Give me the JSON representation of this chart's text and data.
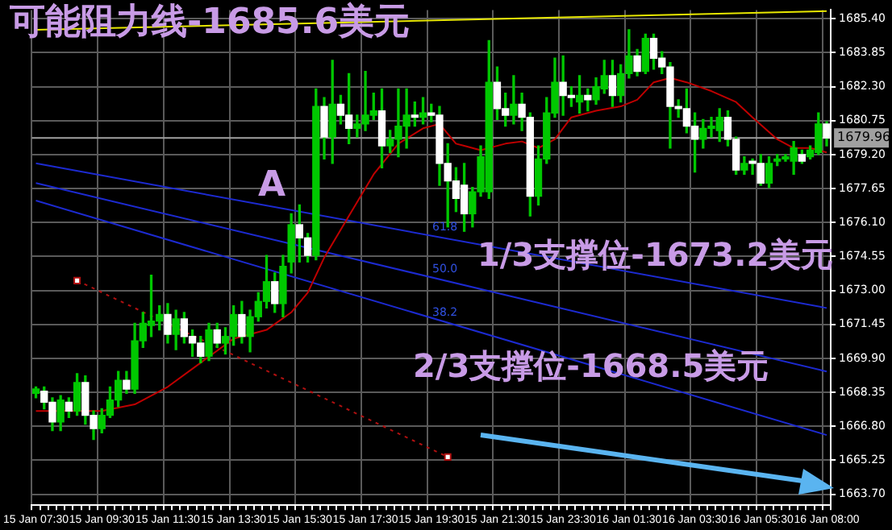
{
  "chart_data": {
    "type": "candlestick",
    "categories": [
      "15 Jan 07:30",
      null,
      null,
      null,
      null,
      null,
      null,
      null,
      "15 Jan 09:30",
      null,
      null,
      null,
      null,
      null,
      null,
      null,
      "15 Jan 11:30",
      null,
      null,
      null,
      null,
      null,
      null,
      null,
      "15 Jan 13:30",
      null,
      null,
      null,
      null,
      null,
      null,
      null,
      "15 Jan 15:30",
      null,
      null,
      null,
      null,
      null,
      null,
      null,
      "15 Jan 17:30",
      null,
      null,
      null,
      null,
      null,
      null,
      null,
      "15 Jan 19:30",
      null,
      null,
      null,
      null,
      null,
      null,
      null,
      "15 Jan 21:30",
      null,
      null,
      null,
      null,
      null,
      null,
      null,
      "15 Jan 23:30",
      null,
      null,
      null,
      null,
      null,
      null,
      null,
      "16 Jan 01:30",
      null,
      null,
      null,
      null,
      null,
      null,
      null,
      "16 Jan 03:30",
      null,
      null,
      null,
      null,
      null,
      null,
      null,
      "16 Jan 05:30",
      null,
      null,
      null,
      null,
      null,
      null,
      null,
      "16 Jan 08:00"
    ],
    "ohlc": [
      [
        1668.3,
        1668.6,
        1668.1,
        1668.5
      ],
      [
        1668.4,
        1668.6,
        1667.6,
        1667.9
      ],
      [
        1667.9,
        1668.1,
        1666.6,
        1667.0
      ],
      [
        1667.0,
        1668.2,
        1666.6,
        1668.0
      ],
      [
        1667.9,
        1668.1,
        1667.2,
        1667.5
      ],
      [
        1667.5,
        1669.2,
        1667.3,
        1668.8
      ],
      [
        1668.8,
        1669.1,
        1666.9,
        1667.3
      ],
      [
        1667.3,
        1667.5,
        1666.2,
        1666.7
      ],
      [
        1666.7,
        1667.6,
        1666.5,
        1667.3
      ],
      [
        1667.3,
        1668.6,
        1667.2,
        1668.0
      ],
      [
        1668.0,
        1669.3,
        1667.7,
        1668.9
      ],
      [
        1668.9,
        1669.3,
        1668.3,
        1668.5
      ],
      [
        1668.5,
        1671.5,
        1668.3,
        1670.7
      ],
      [
        1670.7,
        1672.0,
        1670.4,
        1671.5
      ],
      [
        1671.4,
        1673.7,
        1670.9,
        1671.6
      ],
      [
        1671.6,
        1672.3,
        1671.2,
        1671.9
      ],
      [
        1671.9,
        1672.4,
        1670.6,
        1671.0
      ],
      [
        1671.0,
        1672.1,
        1670.3,
        1671.7
      ],
      [
        1671.7,
        1672.0,
        1670.6,
        1670.9
      ],
      [
        1670.9,
        1671.2,
        1670.0,
        1670.6
      ],
      [
        1670.6,
        1670.9,
        1669.7,
        1670.0
      ],
      [
        1670.0,
        1671.5,
        1669.8,
        1671.2
      ],
      [
        1671.2,
        1671.5,
        1670.4,
        1670.6
      ],
      [
        1670.6,
        1671.3,
        1670.1,
        1670.9
      ],
      [
        1670.9,
        1672.3,
        1670.5,
        1671.9
      ],
      [
        1671.9,
        1672.5,
        1670.6,
        1670.9
      ],
      [
        1670.9,
        1672.1,
        1670.2,
        1671.8
      ],
      [
        1671.8,
        1672.9,
        1671.6,
        1672.5
      ],
      [
        1672.5,
        1674.6,
        1672.2,
        1673.4
      ],
      [
        1673.4,
        1673.8,
        1672.0,
        1672.4
      ],
      [
        1672.4,
        1674.6,
        1671.8,
        1674.1
      ],
      [
        1674.3,
        1676.5,
        1673.8,
        1676.0
      ],
      [
        1676.0,
        1676.9,
        1674.3,
        1675.4
      ],
      [
        1675.4,
        1675.6,
        1674.3,
        1674.6
      ],
      [
        1674.6,
        1682.2,
        1674.4,
        1681.4
      ],
      [
        1681.4,
        1681.8,
        1679.0,
        1680.0
      ],
      [
        1680.0,
        1683.5,
        1678.8,
        1681.5
      ],
      [
        1681.5,
        1681.9,
        1680.6,
        1681.0
      ],
      [
        1681.0,
        1682.9,
        1679.7,
        1680.4
      ],
      [
        1680.4,
        1681.0,
        1680.0,
        1680.6
      ],
      [
        1680.6,
        1683.0,
        1680.3,
        1681.0
      ],
      [
        1681.0,
        1682.0,
        1680.8,
        1681.2
      ],
      [
        1681.2,
        1682.2,
        1678.6,
        1679.6
      ],
      [
        1679.6,
        1680.3,
        1679.3,
        1679.9
      ],
      [
        1679.9,
        1682.2,
        1679.1,
        1680.5
      ],
      [
        1680.5,
        1682.2,
        1679.5,
        1681.0
      ],
      [
        1681.0,
        1681.6,
        1680.5,
        1680.9
      ],
      [
        1680.9,
        1681.8,
        1680.6,
        1681.1
      ],
      [
        1681.1,
        1681.5,
        1680.7,
        1681.0
      ],
      [
        1681.0,
        1681.4,
        1677.8,
        1678.8
      ],
      [
        1678.8,
        1679.7,
        1675.9,
        1678.0
      ],
      [
        1678.0,
        1678.6,
        1676.6,
        1677.2
      ],
      [
        1677.8,
        1678.8,
        1675.7,
        1676.5
      ],
      [
        1676.5,
        1677.7,
        1675.9,
        1677.5
      ],
      [
        1677.5,
        1679.6,
        1677.3,
        1679.1
      ],
      [
        1677.5,
        1684.4,
        1677.2,
        1682.5
      ],
      [
        1682.5,
        1683.2,
        1680.8,
        1681.3
      ],
      [
        1681.3,
        1682.0,
        1680.5,
        1681.0
      ],
      [
        1681.0,
        1682.8,
        1680.6,
        1681.5
      ],
      [
        1681.5,
        1682.0,
        1680.3,
        1680.9
      ],
      [
        1680.9,
        1681.1,
        1676.4,
        1677.3
      ],
      [
        1677.3,
        1679.6,
        1676.9,
        1679.0
      ],
      [
        1679.0,
        1681.8,
        1678.8,
        1681.1
      ],
      [
        1681.1,
        1683.6,
        1680.9,
        1682.5
      ],
      [
        1682.5,
        1683.7,
        1681.0,
        1681.9
      ],
      [
        1681.9,
        1682.3,
        1681.4,
        1681.8
      ],
      [
        1681.6,
        1682.8,
        1681.1,
        1681.9
      ],
      [
        1681.9,
        1682.2,
        1681.2,
        1681.7
      ],
      [
        1681.7,
        1682.7,
        1681.5,
        1682.3
      ],
      [
        1682.2,
        1683.5,
        1682.0,
        1682.8
      ],
      [
        1682.8,
        1683.5,
        1681.4,
        1681.9
      ],
      [
        1681.9,
        1683.3,
        1681.6,
        1682.9
      ],
      [
        1682.9,
        1684.9,
        1682.7,
        1683.7
      ],
      [
        1683.7,
        1684.0,
        1682.8,
        1683.0
      ],
      [
        1683.0,
        1684.7,
        1682.9,
        1684.5
      ],
      [
        1684.5,
        1684.7,
        1683.1,
        1683.6
      ],
      [
        1683.6,
        1683.9,
        1682.9,
        1683.2
      ],
      [
        1683.2,
        1683.4,
        1679.5,
        1681.4
      ],
      [
        1681.4,
        1681.7,
        1680.9,
        1681.3
      ],
      [
        1681.3,
        1682.2,
        1680.2,
        1680.5
      ],
      [
        1680.5,
        1681.1,
        1678.4,
        1679.9
      ],
      [
        1679.9,
        1680.8,
        1679.5,
        1680.4
      ],
      [
        1680.4,
        1680.9,
        1680.0,
        1680.5
      ],
      [
        1680.3,
        1681.3,
        1679.8,
        1680.9
      ],
      [
        1680.9,
        1681.2,
        1679.6,
        1679.9
      ],
      [
        1679.9,
        1680.0,
        1678.3,
        1678.5
      ],
      [
        1678.5,
        1679.1,
        1678.3,
        1678.8
      ],
      [
        1678.9,
        1679.0,
        1678.3,
        1678.8
      ],
      [
        1678.8,
        1679.2,
        1677.8,
        1677.9
      ],
      [
        1677.9,
        1679.1,
        1677.7,
        1678.8
      ],
      [
        1678.9,
        1679.2,
        1678.7,
        1679.0
      ],
      [
        1679.0,
        1679.2,
        1678.9,
        1679.1
      ],
      [
        1678.9,
        1679.8,
        1678.3,
        1679.5
      ],
      [
        1679.2,
        1679.4,
        1678.8,
        1678.9
      ],
      [
        1679.1,
        1679.6,
        1679.0,
        1679.4
      ],
      [
        1679.3,
        1681.1,
        1679.2,
        1680.6
      ],
      [
        1680.6,
        1680.7,
        1679.6,
        1679.96
      ]
    ],
    "series": [
      {
        "type": "line",
        "color": "#c00000",
        "values": [
          1667.5,
          null,
          null,
          null,
          null,
          null,
          null,
          null,
          1667.5,
          null,
          null,
          null,
          1667.8,
          null,
          null,
          null,
          1668.6,
          null,
          null,
          null,
          1669.7,
          null,
          null,
          null,
          1670.8,
          null,
          null,
          null,
          1671.2,
          null,
          null,
          1672.0,
          null,
          1672.9,
          null,
          1674.5,
          null,
          null,
          1676.4,
          null,
          null,
          1678.3,
          null,
          null,
          1679.7,
          null,
          null,
          1680.4,
          null,
          1680.6,
          null,
          1679.7,
          1679.6,
          null,
          1679.4,
          null,
          null,
          1679.7,
          null,
          1679.8,
          null,
          1679.5,
          null,
          1679.9,
          null,
          1680.9,
          null,
          null,
          1681.2,
          null,
          null,
          1681.4,
          null,
          1681.7,
          null,
          1682.5,
          null,
          1682.7,
          null,
          1682.5,
          null,
          null,
          1682.1,
          null,
          null,
          1681.6,
          null,
          1680.9,
          null,
          null,
          1679.9,
          null,
          1679.5,
          null,
          1679.5,
          null,
          1679.3
        ]
      },
      {
        "type": "line",
        "color": "#e8e800",
        "values": [
          1684.9,
          null,
          null,
          null,
          null,
          null,
          null,
          null,
          null,
          null,
          null,
          null,
          null,
          null,
          null,
          null,
          null,
          null,
          null,
          null,
          null,
          null,
          null,
          null,
          null,
          null,
          null,
          null,
          null,
          null,
          null,
          null,
          null,
          null,
          null,
          null,
          null,
          null,
          null,
          null,
          null,
          null,
          null,
          null,
          null,
          null,
          null,
          null,
          null,
          null,
          null,
          null,
          null,
          null,
          null,
          null,
          null,
          null,
          null,
          null,
          null,
          null,
          null,
          null,
          null,
          null,
          null,
          null,
          null,
          null,
          null,
          null,
          null,
          null,
          null,
          null,
          null,
          null,
          null,
          null,
          null,
          null,
          null,
          null,
          null,
          null,
          null,
          null,
          null,
          null,
          null,
          null,
          null,
          null,
          null,
          null,
          1685.75
        ]
      },
      {
        "type": "line",
        "color": "#1c2ad0",
        "values": [
          1678.8,
          null,
          null,
          null,
          null,
          null,
          null,
          null,
          null,
          null,
          null,
          null,
          null,
          null,
          null,
          null,
          null,
          null,
          null,
          null,
          null,
          null,
          null,
          null,
          null,
          null,
          null,
          null,
          null,
          null,
          null,
          null,
          null,
          null,
          null,
          null,
          null,
          null,
          null,
          null,
          null,
          null,
          null,
          null,
          null,
          null,
          null,
          null,
          null,
          null,
          null,
          null,
          null,
          null,
          null,
          null,
          null,
          null,
          null,
          null,
          null,
          null,
          null,
          null,
          null,
          null,
          null,
          null,
          null,
          null,
          null,
          null,
          null,
          null,
          null,
          null,
          null,
          null,
          null,
          null,
          null,
          null,
          null,
          null,
          null,
          null,
          null,
          null,
          null,
          null,
          null,
          null,
          null,
          null,
          null,
          null,
          1672.2
        ]
      },
      {
        "type": "line",
        "color": "#1c2ad0",
        "values": [
          1677.9,
          null,
          null,
          null,
          null,
          null,
          null,
          null,
          null,
          null,
          null,
          null,
          null,
          null,
          null,
          null,
          null,
          null,
          null,
          null,
          null,
          null,
          null,
          null,
          null,
          null,
          null,
          null,
          null,
          null,
          null,
          null,
          null,
          null,
          null,
          null,
          null,
          null,
          null,
          null,
          null,
          null,
          null,
          null,
          null,
          null,
          null,
          null,
          null,
          null,
          null,
          null,
          null,
          null,
          null,
          null,
          null,
          null,
          null,
          null,
          null,
          null,
          null,
          null,
          null,
          null,
          null,
          null,
          null,
          null,
          null,
          null,
          null,
          null,
          null,
          null,
          null,
          null,
          null,
          null,
          null,
          null,
          null,
          null,
          null,
          null,
          null,
          null,
          null,
          null,
          null,
          null,
          null,
          null,
          null,
          null,
          1669.3
        ]
      },
      {
        "type": "line",
        "color": "#1c2ad0",
        "values": [
          1677.1,
          null,
          null,
          null,
          null,
          null,
          null,
          null,
          null,
          null,
          null,
          null,
          null,
          null,
          null,
          null,
          null,
          null,
          null,
          null,
          null,
          null,
          null,
          null,
          null,
          null,
          null,
          null,
          null,
          null,
          null,
          null,
          null,
          null,
          null,
          null,
          null,
          null,
          null,
          null,
          null,
          null,
          null,
          null,
          null,
          null,
          null,
          null,
          null,
          null,
          null,
          null,
          null,
          null,
          null,
          null,
          null,
          null,
          null,
          null,
          null,
          null,
          null,
          null,
          null,
          null,
          null,
          null,
          null,
          null,
          null,
          null,
          null,
          null,
          null,
          null,
          null,
          null,
          null,
          null,
          null,
          null,
          null,
          null,
          null,
          null,
          null,
          null,
          null,
          null,
          null,
          null,
          null,
          null,
          null,
          null,
          1666.4
        ]
      },
      {
        "type": "line",
        "color": "#b01010",
        "line_style": "dotted",
        "marker": "square",
        "values": [
          null,
          null,
          null,
          null,
          null,
          1673.45,
          null,
          null,
          null,
          null,
          null,
          null,
          null,
          null,
          null,
          null,
          null,
          null,
          null,
          null,
          null,
          null,
          null,
          null,
          null,
          null,
          null,
          null,
          null,
          null,
          null,
          null,
          null,
          null,
          null,
          null,
          null,
          null,
          null,
          null,
          null,
          null,
          null,
          null,
          null,
          null,
          null,
          null,
          null,
          null,
          1665.4,
          null,
          null,
          null,
          null,
          null,
          null,
          null,
          null,
          null,
          null,
          null,
          null,
          null,
          null,
          null,
          null,
          null,
          null,
          null,
          null,
          null,
          null,
          null,
          null,
          null,
          null,
          null,
          null,
          null,
          null,
          null,
          null,
          null,
          null,
          null,
          null,
          null,
          null,
          null,
          null,
          null,
          null,
          null,
          null,
          null,
          null
        ]
      }
    ],
    "ylim": [
      1663.2,
      1685.8
    ],
    "yticks": [
      {
        "value": 1663.7,
        "label": "1663.70"
      },
      {
        "value": 1665.25,
        "label": "1665.25"
      },
      {
        "value": 1666.8,
        "label": "1666.80"
      },
      {
        "value": 1668.35,
        "label": "1668.35"
      },
      {
        "value": 1669.9,
        "label": "1669.90"
      },
      {
        "value": 1671.45,
        "label": "1671.45"
      },
      {
        "value": 1673,
        "label": "1673.00"
      },
      {
        "value": 1674.55,
        "label": "1674.55"
      },
      {
        "value": 1676.1,
        "label": "1676.10"
      },
      {
        "value": 1677.65,
        "label": "1677.65"
      },
      {
        "value": 1679.2,
        "label": "1679.20"
      },
      {
        "value": 1680.75,
        "label": "1680.75"
      },
      {
        "value": 1682.3,
        "label": "1682.30"
      },
      {
        "value": 1683.85,
        "label": "1683.85"
      },
      {
        "value": 1685.4,
        "label": "1685.40"
      }
    ],
    "ref_lines": [
      {
        "axis": "y",
        "value": 1679.96,
        "label": "1679.96",
        "color": "#a0a0a0"
      }
    ],
    "annotations": [
      "可能阻力线-1685.6美元",
      "A",
      "1/3支撑位-1673.2美元",
      "2/3支撑位-1668.5美元",
      "61.8",
      "50.0",
      "38.2"
    ],
    "grid": true,
    "legend": false
  }
}
